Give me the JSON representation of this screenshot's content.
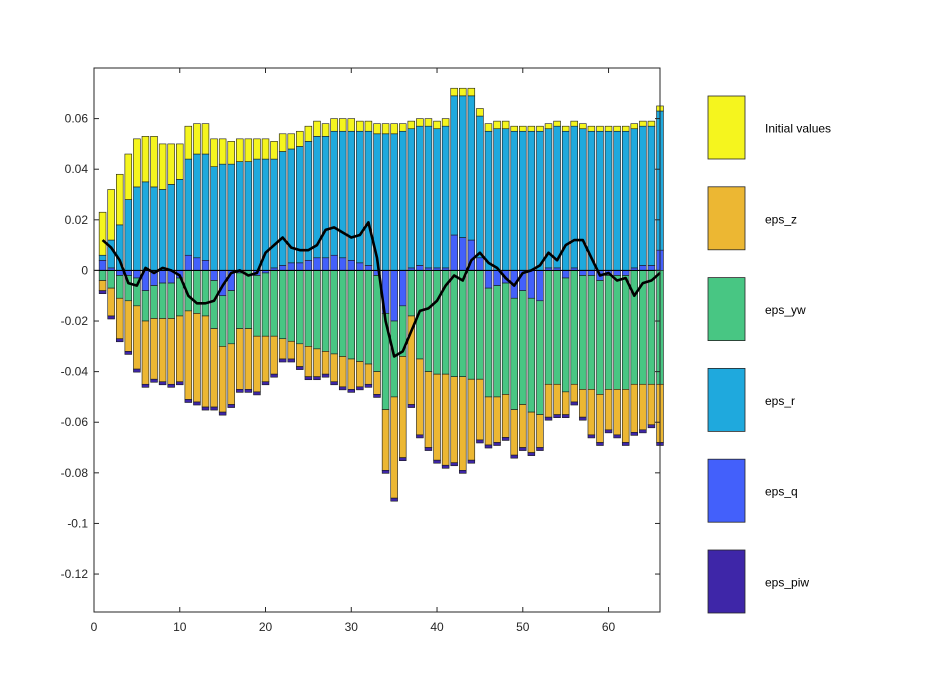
{
  "chart_data": {
    "type": "bar",
    "stacked": true,
    "x": [
      1,
      2,
      3,
      4,
      5,
      6,
      7,
      8,
      9,
      10,
      11,
      12,
      13,
      14,
      15,
      16,
      17,
      18,
      19,
      20,
      21,
      22,
      23,
      24,
      25,
      26,
      27,
      28,
      29,
      30,
      31,
      32,
      33,
      34,
      35,
      36,
      37,
      38,
      39,
      40,
      41,
      42,
      43,
      44,
      45,
      46,
      47,
      48,
      49,
      50,
      51,
      52,
      53,
      54,
      55,
      56,
      57,
      58,
      59,
      60,
      61,
      62,
      63,
      64,
      65,
      66
    ],
    "xlim": [
      0,
      66
    ],
    "ylim": [
      -0.135,
      0.08
    ],
    "xticks": [
      0,
      10,
      20,
      30,
      40,
      50,
      60
    ],
    "yticks": [
      0.06,
      0.04,
      0.02,
      0,
      -0.02,
      -0.04,
      -0.06,
      -0.08,
      -0.1,
      -0.12
    ],
    "ytick_labels": [
      "0.06",
      "0.04",
      "0.02",
      "0",
      "-0.02",
      "-0.04",
      "-0.06",
      "-0.08",
      "-0.1",
      "-0.12"
    ],
    "xtick_labels": [
      "0",
      "10",
      "20",
      "30",
      "40",
      "50",
      "60"
    ],
    "legend_position": "right",
    "series": [
      {
        "name": "Initial values",
        "color": "#f5f51e",
        "values": [
          0.017,
          0.02,
          0.02,
          0.018,
          0.019,
          0.018,
          0.02,
          0.018,
          0.016,
          0.014,
          0.013,
          0.012,
          0.012,
          0.011,
          0.01,
          0.009,
          0.009,
          0.009,
          0.008,
          0.008,
          0.007,
          0.007,
          0.006,
          0.006,
          0.006,
          0.006,
          0.005,
          0.005,
          0.005,
          0.005,
          0.004,
          0.004,
          0.004,
          0.004,
          0.004,
          0.003,
          0.003,
          0.003,
          0.003,
          0.003,
          0.003,
          0.003,
          0.003,
          0.003,
          0.003,
          0.003,
          0.003,
          0.003,
          0.002,
          0.002,
          0.002,
          0.002,
          0.002,
          0.002,
          0.002,
          0.002,
          0.002,
          0.002,
          0.002,
          0.002,
          0.002,
          0.002,
          0.002,
          0.002,
          0.002,
          0.002
        ]
      },
      {
        "name": "eps_z",
        "color": "#ecb733",
        "values": [
          -0.004,
          -0.011,
          -0.016,
          -0.02,
          -0.025,
          -0.025,
          -0.024,
          -0.025,
          -0.026,
          -0.026,
          -0.035,
          -0.035,
          -0.036,
          -0.031,
          -0.026,
          -0.024,
          -0.024,
          -0.024,
          -0.022,
          -0.018,
          -0.015,
          -0.008,
          -0.007,
          -0.009,
          -0.012,
          -0.011,
          -0.009,
          -0.011,
          -0.012,
          -0.012,
          -0.01,
          -0.008,
          -0.009,
          -0.024,
          -0.04,
          -0.04,
          -0.035,
          -0.03,
          -0.03,
          -0.034,
          -0.036,
          -0.034,
          -0.037,
          -0.032,
          -0.024,
          -0.019,
          -0.018,
          -0.017,
          -0.018,
          -0.017,
          -0.016,
          -0.013,
          -0.013,
          -0.012,
          -0.009,
          -0.007,
          -0.011,
          -0.018,
          -0.019,
          -0.016,
          -0.018,
          -0.021,
          -0.019,
          -0.018,
          -0.016,
          -0.023
        ]
      },
      {
        "name": "eps_yw",
        "color": "#48c683",
        "values": [
          -0.004,
          -0.007,
          -0.009,
          -0.01,
          -0.011,
          -0.012,
          -0.013,
          -0.014,
          -0.014,
          -0.015,
          -0.016,
          -0.017,
          -0.018,
          -0.019,
          -0.02,
          -0.021,
          -0.022,
          -0.023,
          -0.024,
          -0.025,
          -0.026,
          -0.027,
          -0.028,
          -0.029,
          -0.03,
          -0.031,
          -0.032,
          -0.033,
          -0.034,
          -0.035,
          -0.036,
          -0.037,
          -0.038,
          -0.038,
          -0.03,
          -0.02,
          -0.018,
          -0.035,
          -0.04,
          -0.041,
          -0.041,
          -0.042,
          -0.042,
          -0.043,
          -0.043,
          -0.043,
          -0.044,
          -0.044,
          -0.044,
          -0.045,
          -0.045,
          -0.045,
          -0.045,
          -0.045,
          -0.045,
          -0.045,
          -0.045,
          -0.045,
          -0.045,
          -0.045,
          -0.045,
          -0.045,
          -0.045,
          -0.045,
          -0.045,
          -0.045
        ]
      },
      {
        "name": "eps_r",
        "color": "#1fa9dd",
        "values": [
          0.002,
          0.011,
          0.018,
          0.028,
          0.033,
          0.035,
          0.033,
          0.032,
          0.034,
          0.036,
          0.038,
          0.041,
          0.042,
          0.041,
          0.042,
          0.042,
          0.043,
          0.043,
          0.044,
          0.044,
          0.043,
          0.045,
          0.045,
          0.046,
          0.047,
          0.048,
          0.048,
          0.049,
          0.05,
          0.051,
          0.052,
          0.053,
          0.054,
          0.054,
          0.054,
          0.055,
          0.055,
          0.055,
          0.056,
          0.055,
          0.056,
          0.055,
          0.056,
          0.057,
          0.056,
          0.055,
          0.056,
          0.056,
          0.055,
          0.055,
          0.055,
          0.055,
          0.055,
          0.056,
          0.055,
          0.056,
          0.056,
          0.055,
          0.055,
          0.055,
          0.055,
          0.055,
          0.055,
          0.055,
          0.055,
          0.055
        ]
      },
      {
        "name": "eps_q",
        "color": "#4360fb",
        "values": [
          0.004,
          0.001,
          -0.002,
          -0.002,
          -0.003,
          -0.008,
          -0.006,
          -0.005,
          -0.005,
          -0.003,
          0.006,
          0.005,
          0.004,
          -0.004,
          -0.01,
          -0.008,
          -0.001,
          0.0,
          -0.002,
          -0.001,
          0.001,
          0.002,
          0.003,
          0.003,
          0.004,
          0.005,
          0.005,
          0.006,
          0.005,
          0.004,
          0.003,
          0.002,
          -0.002,
          -0.017,
          -0.02,
          -0.014,
          0.001,
          0.002,
          0.001,
          0.001,
          0.001,
          0.014,
          0.013,
          0.012,
          0.005,
          -0.007,
          -0.006,
          -0.005,
          -0.011,
          -0.008,
          -0.011,
          -0.012,
          0.001,
          0.001,
          -0.003,
          0.001,
          -0.002,
          -0.002,
          -0.004,
          -0.002,
          -0.002,
          -0.002,
          0.001,
          0.002,
          0.002,
          0.008
        ]
      },
      {
        "name": "eps_piw",
        "color": "#3e26a8",
        "values": [
          -0.0012,
          -0.0012,
          -0.0012,
          -0.0012,
          -0.0012,
          -0.0012,
          -0.0012,
          -0.0012,
          -0.0012,
          -0.0012,
          -0.0012,
          -0.0012,
          -0.0012,
          -0.0012,
          -0.0012,
          -0.0012,
          -0.0012,
          -0.0012,
          -0.0012,
          -0.0012,
          -0.0012,
          -0.0012,
          -0.0012,
          -0.0012,
          -0.0012,
          -0.0012,
          -0.0012,
          -0.0012,
          -0.0012,
          -0.0012,
          -0.0012,
          -0.0012,
          -0.0012,
          -0.0012,
          -0.0012,
          -0.0012,
          -0.0012,
          -0.0012,
          -0.0012,
          -0.0012,
          -0.0012,
          -0.0012,
          -0.0012,
          -0.0012,
          -0.0012,
          -0.0012,
          -0.0012,
          -0.0012,
          -0.0012,
          -0.0012,
          -0.0012,
          -0.0012,
          -0.0012,
          -0.0012,
          -0.0012,
          -0.0012,
          -0.0012,
          -0.0012,
          -0.0012,
          -0.0012,
          -0.0012,
          -0.0012,
          -0.0012,
          -0.0012,
          -0.0012,
          -0.0012
        ]
      }
    ],
    "line": {
      "color": "#000000",
      "values": [
        0.012,
        0.009,
        0.004,
        -0.005,
        -0.006,
        0.001,
        -0.001,
        0.001,
        0.0,
        -0.002,
        -0.01,
        -0.013,
        -0.013,
        -0.012,
        -0.006,
        -0.001,
        0.0,
        -0.002,
        -0.001,
        0.007,
        0.01,
        0.013,
        0.009,
        0.008,
        0.008,
        0.01,
        0.016,
        0.017,
        0.015,
        0.013,
        0.014,
        0.019,
        0.005,
        -0.02,
        -0.034,
        -0.032,
        -0.024,
        -0.016,
        -0.015,
        -0.012,
        -0.006,
        -0.002,
        -0.004,
        0.004,
        0.007,
        0.003,
        0.001,
        -0.003,
        -0.006,
        -0.001,
        0.0,
        0.002,
        0.007,
        0.004,
        0.01,
        0.012,
        0.012,
        0.005,
        -0.002,
        -0.001,
        -0.004,
        -0.003,
        -0.01,
        -0.005,
        -0.004,
        -0.001
      ]
    }
  }
}
